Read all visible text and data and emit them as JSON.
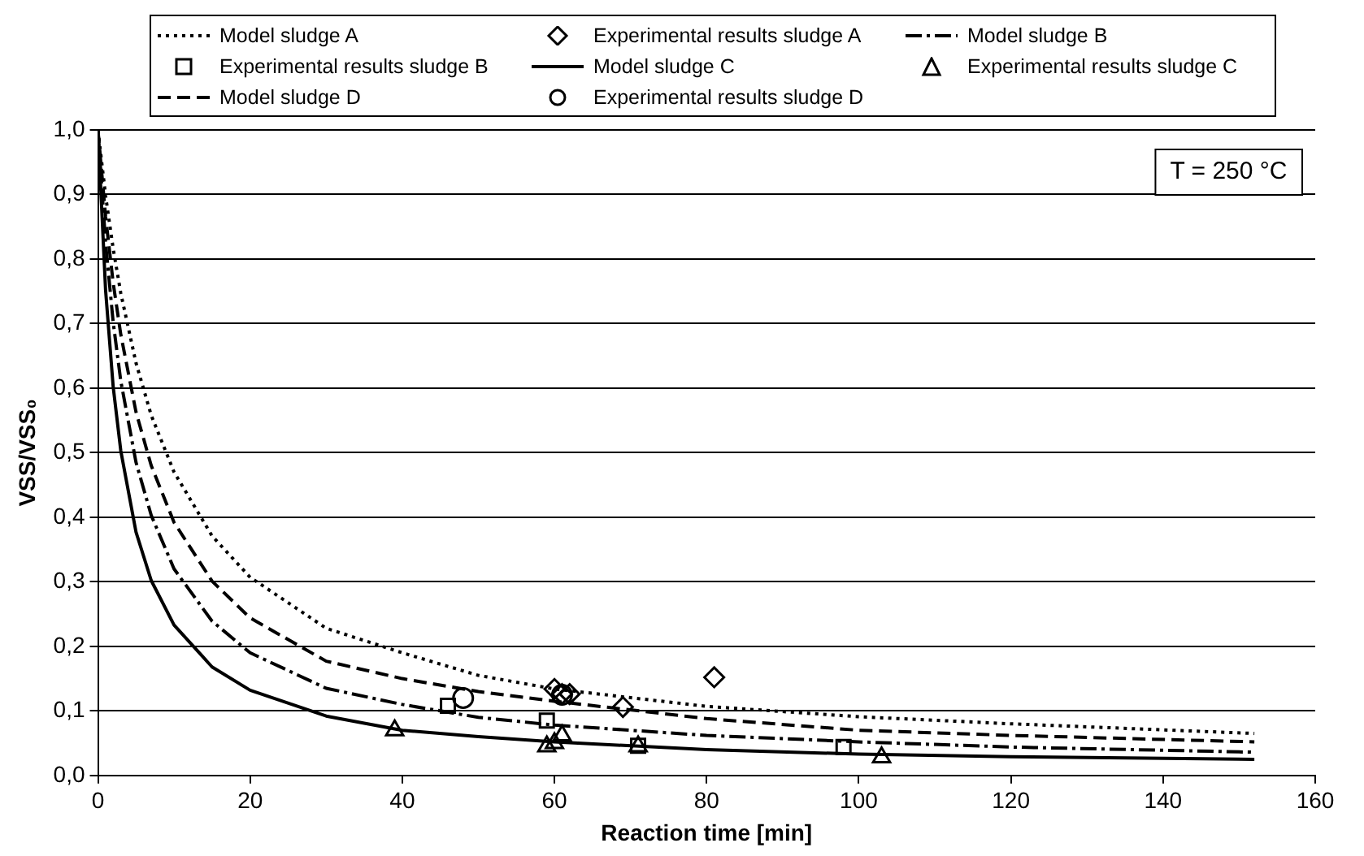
{
  "chart_data": {
    "type": "line",
    "xlabel": "Reaction time [min]",
    "ylabel": "VSS/VSS₀",
    "xlim": [
      0,
      160
    ],
    "xticks": [
      0,
      20,
      40,
      60,
      80,
      100,
      120,
      140,
      160
    ],
    "ylim": [
      0,
      1
    ],
    "yticks": [
      {
        "value": 0,
        "label": "0,0"
      },
      {
        "value": 0.1,
        "label": "0,1"
      },
      {
        "value": 0.2,
        "label": "0,2"
      },
      {
        "value": 0.3,
        "label": "0,3"
      },
      {
        "value": 0.4,
        "label": "0,4"
      },
      {
        "value": 0.5,
        "label": "0,5"
      },
      {
        "value": 0.6,
        "label": "0,6"
      },
      {
        "value": 0.7,
        "label": "0,7"
      },
      {
        "value": 0.8,
        "label": "0,8"
      },
      {
        "value": 0.9,
        "label": "0,9"
      },
      {
        "value": 1,
        "label": "1,0"
      }
    ],
    "grid": "y",
    "legend": "top",
    "annotations": [
      "T = 250 °C"
    ],
    "series": [
      {
        "name": "Model sludge A",
        "type": "line",
        "line_style": "dotted",
        "marker": "none",
        "color": "#000000",
        "x": [
          0,
          1,
          2,
          3,
          5,
          7,
          10,
          15,
          20,
          30,
          40,
          50,
          60,
          80,
          100,
          120,
          152
        ],
        "values": [
          1,
          0.898,
          0.816,
          0.747,
          0.639,
          0.558,
          0.47,
          0.371,
          0.307,
          0.228,
          0.19,
          0.155,
          0.134,
          0.107,
          0.091,
          0.08,
          0.065
        ]
      },
      {
        "name": "Experimental results sludge A",
        "type": "scatter",
        "marker": "diamond",
        "color": "#000000",
        "x": [
          60,
          61,
          62,
          69,
          81
        ],
        "values": [
          0.134,
          0.126,
          0.126,
          0.106,
          0.152
        ]
      },
      {
        "name": "Model sludge B",
        "type": "line",
        "line_style": "dashdot",
        "marker": "none",
        "color": "#000000",
        "x": [
          0,
          1,
          2,
          3,
          5,
          7,
          10,
          15,
          20,
          30,
          40,
          50,
          60,
          80,
          100,
          120,
          152
        ],
        "values": [
          1,
          0.825,
          0.702,
          0.611,
          0.485,
          0.403,
          0.32,
          0.239,
          0.19,
          0.135,
          0.11,
          0.09,
          0.078,
          0.062,
          0.052,
          0.044,
          0.036
        ]
      },
      {
        "name": "Experimental results sludge B",
        "type": "scatter",
        "marker": "square",
        "color": "#000000",
        "x": [
          46,
          59,
          71,
          98
        ],
        "values": [
          0.108,
          0.085,
          0.046,
          0.044
        ]
      },
      {
        "name": "Model sludge C",
        "type": "line",
        "line_style": "solid",
        "marker": "none",
        "color": "#000000",
        "x": [
          0,
          1,
          2,
          3,
          5,
          7,
          10,
          15,
          20,
          30,
          40,
          50,
          60,
          80,
          100,
          120,
          152
        ],
        "values": [
          1,
          0.752,
          0.602,
          0.503,
          0.377,
          0.302,
          0.233,
          0.168,
          0.132,
          0.092,
          0.07,
          0.06,
          0.052,
          0.04,
          0.033,
          0.029,
          0.025
        ]
      },
      {
        "name": "Experimental results sludge C",
        "type": "scatter",
        "marker": "triangle",
        "color": "#000000",
        "x": [
          39,
          59,
          60,
          61,
          71,
          103
        ],
        "values": [
          0.07,
          0.045,
          0.05,
          0.062,
          0.045,
          0.028
        ]
      },
      {
        "name": "Model sludge D",
        "type": "line",
        "line_style": "dashed",
        "marker": "none",
        "color": "#000000",
        "x": [
          0,
          1,
          2,
          3,
          5,
          7,
          10,
          15,
          20,
          30,
          40,
          50,
          60,
          80,
          100,
          120,
          152
        ],
        "values": [
          1,
          0.866,
          0.763,
          0.683,
          0.563,
          0.48,
          0.392,
          0.301,
          0.244,
          0.177,
          0.15,
          0.13,
          0.115,
          0.088,
          0.07,
          0.062,
          0.052
        ]
      },
      {
        "name": "Experimental results sludge D",
        "type": "scatter",
        "marker": "circle",
        "color": "#000000",
        "x": [
          48,
          61
        ],
        "values": [
          0.12,
          0.125
        ]
      }
    ]
  }
}
